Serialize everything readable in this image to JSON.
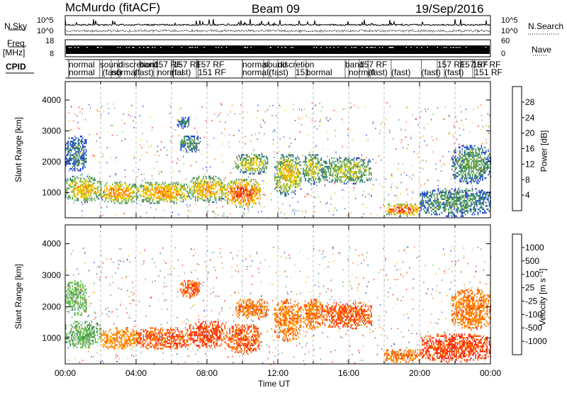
{
  "header": {
    "station": "McMurdo (fitACF)",
    "beam": "Beam 09",
    "date": "19/Sep/2016"
  },
  "strips": {
    "nsky_label": "N.Sky",
    "nsky_ticks": [
      "10^5",
      "10^0"
    ],
    "nsearch_label": "N.Search",
    "nsearch_ticks": [
      "10^5",
      "10^0"
    ],
    "freq_label": "Freq.",
    "freq_unit": "[MHz]",
    "freq_ticks": [
      "18",
      "8"
    ],
    "nave_label": "Nave",
    "nave_ticks": [
      "60",
      "0"
    ],
    "cpid_label": "CPID",
    "cpid_segments": [
      {
        "t": 0.2,
        "row": 0,
        "text": "normal"
      },
      {
        "t": 0.2,
        "row": 1,
        "text": "normal"
      },
      {
        "t": 1.95,
        "row": 0,
        "text": "sound"
      },
      {
        "t": 2.1,
        "row": 1,
        "text": "(fast)"
      },
      {
        "t": 2.6,
        "row": 1,
        "text": "normal"
      },
      {
        "t": 3.0,
        "row": 0,
        "text": "discretion"
      },
      {
        "t": 3.9,
        "row": 1,
        "text": "(fast)"
      },
      {
        "t": 4.2,
        "row": 0,
        "text": "band"
      },
      {
        "t": 5.0,
        "row": 0,
        "text": "157 RF"
      },
      {
        "t": 5.2,
        "row": 1,
        "text": "normal"
      },
      {
        "t": 6.1,
        "row": 0,
        "text": "157 RF"
      },
      {
        "t": 6.0,
        "row": 1,
        "text": "(fast)"
      },
      {
        "t": 7.4,
        "row": 0,
        "text": "157 RF"
      },
      {
        "t": 7.5,
        "row": 1,
        "text": "151 RF"
      },
      {
        "t": 10.0,
        "row": 0,
        "text": "normal"
      },
      {
        "t": 10.0,
        "row": 1,
        "text": "normal"
      },
      {
        "t": 11.2,
        "row": 0,
        "text": "sound"
      },
      {
        "t": 11.5,
        "row": 1,
        "text": "(fast)"
      },
      {
        "t": 12.0,
        "row": 0,
        "text": "discretion"
      },
      {
        "t": 13.0,
        "row": 1,
        "text": "151"
      },
      {
        "t": 13.6,
        "row": 1,
        "text": "normal"
      },
      {
        "t": 15.8,
        "row": 0,
        "text": "band"
      },
      {
        "t": 16.0,
        "row": 1,
        "text": "normal"
      },
      {
        "t": 16.6,
        "row": 0,
        "text": "157 RF"
      },
      {
        "t": 17.1,
        "row": 1,
        "text": "(fast)"
      },
      {
        "t": 18.4,
        "row": 1,
        "text": "(fast)"
      },
      {
        "t": 20.1,
        "row": 1,
        "text": "(fast)"
      },
      {
        "t": 21.0,
        "row": 0,
        "text": "157 RF"
      },
      {
        "t": 21.4,
        "row": 1,
        "text": "(fast)"
      },
      {
        "t": 22.3,
        "row": 0,
        "text": "157 RF"
      },
      {
        "t": 23.0,
        "row": 0,
        "text": "157 RF"
      },
      {
        "t": 23.1,
        "row": 1,
        "text": "151 RF"
      }
    ]
  },
  "chart_data": [
    {
      "type": "heatmap",
      "name": "power",
      "ylabel": "Slant Range [km]",
      "xlim": [
        0,
        24
      ],
      "ylim": [
        180,
        4600
      ],
      "yticks": [
        1000,
        2000,
        3000,
        4000
      ],
      "colorbar": {
        "label": "Power [dB]",
        "ticks": [
          "4",
          "8",
          "12",
          "16",
          "20",
          "24",
          "28"
        ],
        "colors": [
          "#0022ff",
          "#2050c0",
          "#3a8a58",
          "#78b050",
          "#f0d000",
          "#ff9a00",
          "#ff5000",
          "#e80000"
        ]
      },
      "regions": [
        {
          "t0": 0.0,
          "t1": 2.0,
          "r0": 700,
          "r1": 1600,
          "intensity": 0.62
        },
        {
          "t0": 0.0,
          "t1": 1.2,
          "r0": 1700,
          "r1": 2900,
          "intensity": 0.3
        },
        {
          "t0": 2.0,
          "t1": 4.0,
          "r0": 650,
          "r1": 1400,
          "intensity": 0.72
        },
        {
          "t0": 4.0,
          "t1": 7.0,
          "r0": 650,
          "r1": 1400,
          "intensity": 0.7
        },
        {
          "t0": 6.5,
          "t1": 7.6,
          "r0": 2300,
          "r1": 2900,
          "intensity": 0.35
        },
        {
          "t0": 6.3,
          "t1": 7.0,
          "r0": 3100,
          "r1": 3500,
          "intensity": 0.3
        },
        {
          "t0": 7.0,
          "t1": 9.0,
          "r0": 700,
          "r1": 1600,
          "intensity": 0.66
        },
        {
          "t0": 9.0,
          "t1": 11.0,
          "r0": 500,
          "r1": 1500,
          "intensity": 0.86
        },
        {
          "t0": 9.6,
          "t1": 11.4,
          "r0": 1600,
          "r1": 2300,
          "intensity": 0.55
        },
        {
          "t0": 11.8,
          "t1": 13.3,
          "r0": 900,
          "r1": 2300,
          "intensity": 0.6
        },
        {
          "t0": 13.4,
          "t1": 14.5,
          "r0": 1300,
          "r1": 2300,
          "intensity": 0.55
        },
        {
          "t0": 14.5,
          "t1": 17.3,
          "r0": 1300,
          "r1": 2200,
          "intensity": 0.5
        },
        {
          "t0": 18.0,
          "t1": 20.0,
          "r0": 250,
          "r1": 700,
          "intensity": 0.85
        },
        {
          "t0": 20.0,
          "t1": 24.0,
          "r0": 250,
          "r1": 1200,
          "intensity": 0.35
        },
        {
          "t0": 21.8,
          "t1": 24.0,
          "r0": 1300,
          "r1": 2600,
          "intensity": 0.4
        }
      ]
    },
    {
      "type": "heatmap",
      "name": "velocity",
      "xlabel": "Time UT",
      "ylabel": "Slant Range [km]",
      "xlim": [
        0,
        24
      ],
      "ylim": [
        180,
        4600
      ],
      "xticks": [
        "00:00",
        "04:00",
        "08:00",
        "12:00",
        "16:00",
        "20:00",
        "00:00"
      ],
      "yticks": [
        1000,
        2000,
        3000,
        4000
      ],
      "colorbar": {
        "label": "Velocity [m s⁻¹]",
        "ticks": [
          "1000",
          "500",
          "100",
          "25",
          "-25",
          "-100",
          "-500",
          "-1000"
        ],
        "colors": [
          "#1030d0",
          "#2f6fa0",
          "#3a8a58",
          "#60c040",
          "#c8c8c8",
          "#ffa000",
          "#ff6a00",
          "#ff2000",
          "#e00000"
        ]
      },
      "regions": [
        {
          "t0": 0.0,
          "t1": 2.0,
          "r0": 700,
          "r1": 1600,
          "intensity": 0.62
        },
        {
          "t0": 0.0,
          "t1": 1.2,
          "r0": 1700,
          "r1": 2900,
          "intensity": 0.6
        },
        {
          "t0": 2.0,
          "t1": 4.0,
          "r0": 650,
          "r1": 1400,
          "intensity": 0.35
        },
        {
          "t0": 4.0,
          "t1": 7.0,
          "r0": 650,
          "r1": 1400,
          "intensity": 0.25
        },
        {
          "t0": 6.5,
          "t1": 7.6,
          "r0": 2300,
          "r1": 2900,
          "intensity": 0.25
        },
        {
          "t0": 7.0,
          "t1": 9.0,
          "r0": 700,
          "r1": 1600,
          "intensity": 0.2
        },
        {
          "t0": 9.0,
          "t1": 11.0,
          "r0": 500,
          "r1": 1500,
          "intensity": 0.25
        },
        {
          "t0": 9.6,
          "t1": 11.4,
          "r0": 1600,
          "r1": 2300,
          "intensity": 0.3
        },
        {
          "t0": 11.8,
          "t1": 13.3,
          "r0": 900,
          "r1": 2300,
          "intensity": 0.3
        },
        {
          "t0": 13.4,
          "t1": 14.5,
          "r0": 1300,
          "r1": 2300,
          "intensity": 0.3
        },
        {
          "t0": 14.5,
          "t1": 17.3,
          "r0": 1300,
          "r1": 2200,
          "intensity": 0.25
        },
        {
          "t0": 18.0,
          "t1": 20.0,
          "r0": 250,
          "r1": 700,
          "intensity": 0.3
        },
        {
          "t0": 20.0,
          "t1": 24.0,
          "r0": 250,
          "r1": 1200,
          "intensity": 0.2
        },
        {
          "t0": 21.8,
          "t1": 24.0,
          "r0": 1300,
          "r1": 2600,
          "intensity": 0.3
        }
      ]
    }
  ]
}
